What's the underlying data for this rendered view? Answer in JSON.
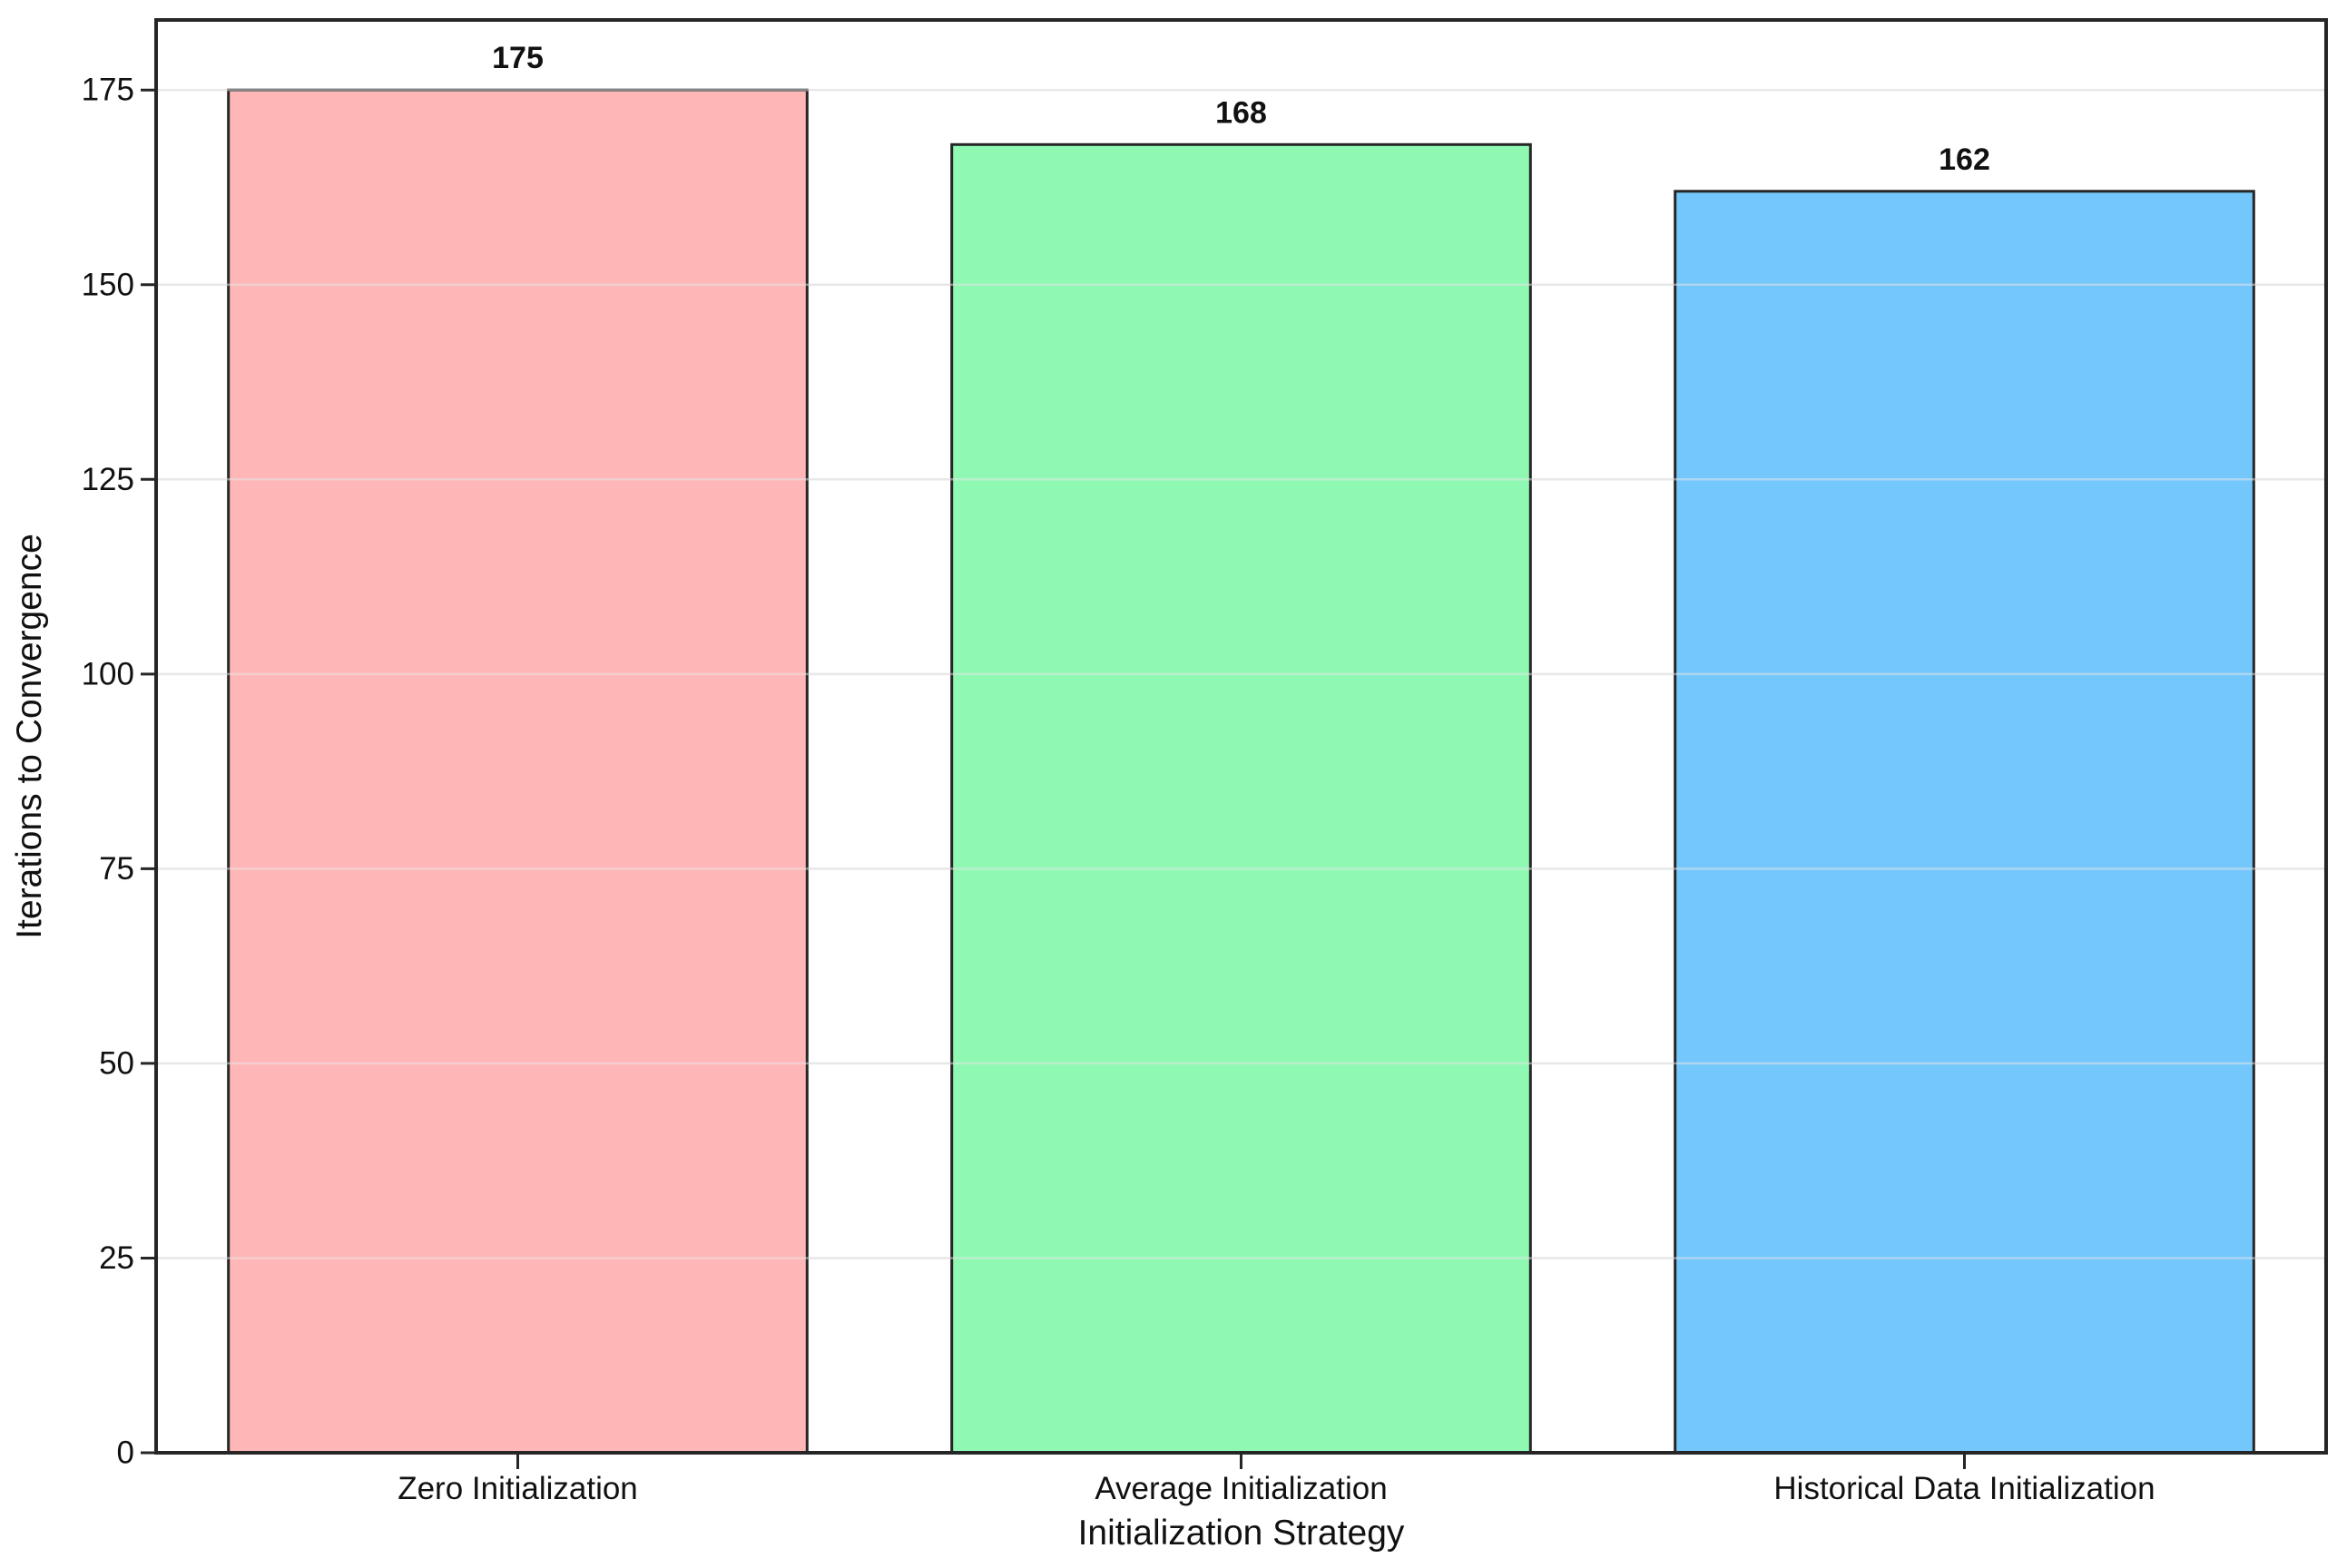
{
  "chart_data": {
    "type": "bar",
    "title": "",
    "categories": [
      "Zero Initialization",
      "Average Initialization",
      "Historical Data Initialization"
    ],
    "values": [
      175,
      168,
      162
    ],
    "bar_labels": [
      "175",
      "168",
      "162"
    ],
    "bar_colors": [
      "#FFB6B6",
      "#8FF9B3",
      "#74C7FB"
    ],
    "bar_edge_color": "#262626",
    "xlabel": "Initialization Strategy",
    "ylabel": "Iterations to Convergence",
    "yticks": [
      0,
      25,
      50,
      75,
      100,
      125,
      150,
      175
    ],
    "ylim": [
      0,
      184
    ],
    "bar_width_fraction": 0.8,
    "grid": "horizontal",
    "grid_color": "#ECECEC",
    "background": "#FFFFFF",
    "axis_color": "#262626",
    "text_color": "#111111",
    "legend": "none"
  }
}
